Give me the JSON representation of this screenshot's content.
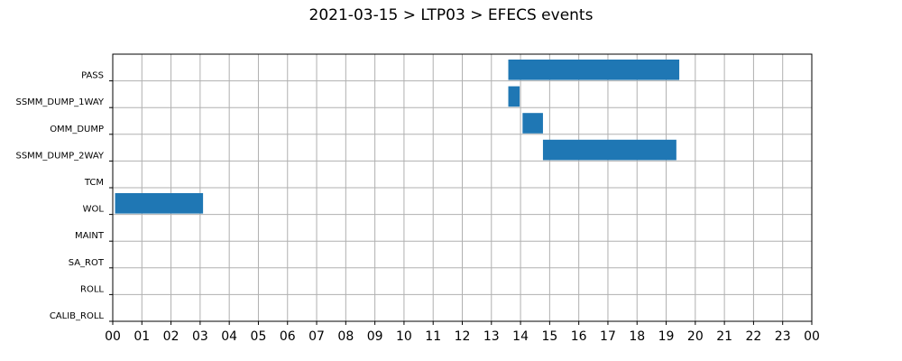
{
  "chart_data": {
    "type": "bar",
    "orientation": "horizontal",
    "title": "2021-03-15 > LTP03 > EFECS events",
    "xlabel": "",
    "ylabel": "",
    "xlim": [
      0,
      24
    ],
    "x_tick_labels": [
      "00",
      "01",
      "02",
      "03",
      "04",
      "05",
      "06",
      "07",
      "08",
      "09",
      "10",
      "11",
      "12",
      "13",
      "14",
      "15",
      "16",
      "17",
      "18",
      "19",
      "20",
      "21",
      "22",
      "23",
      "00"
    ],
    "categories": [
      "PASS",
      "SSMM_DUMP_1WAY",
      "OMM_DUMP",
      "SSMM_DUMP_2WAY",
      "TCM",
      "WOL",
      "MAINT",
      "SA_ROT",
      "ROLL",
      "CALIB_ROLL"
    ],
    "intervals": [
      {
        "category": "PASS",
        "start": 13.58,
        "end": 19.45
      },
      {
        "category": "SSMM_DUMP_1WAY",
        "start": 13.58,
        "end": 13.97
      },
      {
        "category": "OMM_DUMP",
        "start": 14.07,
        "end": 14.77
      },
      {
        "category": "SSMM_DUMP_2WAY",
        "start": 14.77,
        "end": 19.35
      },
      {
        "category": "WOL",
        "start": 0.08,
        "end": 3.1
      }
    ],
    "bar_color": "#1f77b4",
    "grid": true
  }
}
